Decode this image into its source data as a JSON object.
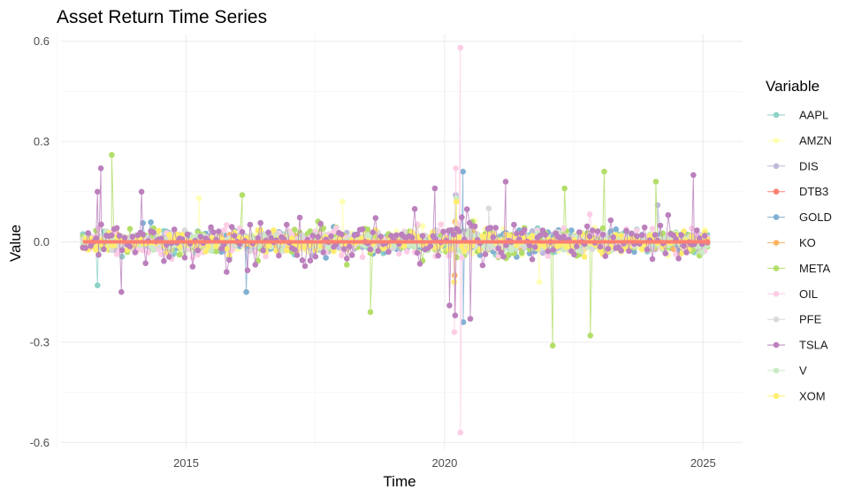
{
  "chart_data": {
    "type": "line",
    "title": "Asset Return Time Series",
    "xlabel": "Time",
    "ylabel": "Value",
    "x_ticks": [
      "2015",
      "2020",
      "2025"
    ],
    "y_ticks": [
      "0.6",
      "0.3",
      "0.0",
      "-0.3",
      "-0.6"
    ],
    "xlim": [
      "2012-07-31",
      "2025-10-07"
    ],
    "ylim": [
      -0.62,
      0.62
    ],
    "grid": true,
    "legend": {
      "title": "Variable",
      "position": "right"
    },
    "markers": true,
    "series": [
      {
        "name": "AAPL",
        "color": "#8DD3C7",
        "extremes": [
          {
            "x": "2013-04-15",
            "y": -0.13
          }
        ]
      },
      {
        "name": "AMZN",
        "color": "#FFFFB3",
        "extremes": [
          {
            "x": "2015-04-01",
            "y": 0.13
          },
          {
            "x": "2018-01-10",
            "y": 0.12
          },
          {
            "x": "2021-11-01",
            "y": -0.12
          }
        ]
      },
      {
        "name": "DIS",
        "color": "#BEBADA",
        "extremes": [
          {
            "x": "2020-03-20",
            "y": 0.14
          },
          {
            "x": "2024-02-15",
            "y": 0.11
          }
        ]
      },
      {
        "name": "DTB3",
        "color": "#FB8072",
        "x": [
          "2013-01-02",
          "2025-01-31"
        ],
        "values": [
          0.0,
          0.0
        ]
      },
      {
        "name": "GOLD",
        "color": "#80B1D3",
        "extremes": [
          {
            "x": "2020-05-10",
            "y": 0.21
          },
          {
            "x": "2020-05-12",
            "y": -0.24
          },
          {
            "x": "2016-03-01",
            "y": -0.15
          }
        ]
      },
      {
        "name": "KO",
        "color": "#FDB462",
        "extremes": [
          {
            "x": "2020-03-16",
            "y": 0.06
          },
          {
            "x": "2020-03-12",
            "y": -0.1
          }
        ]
      },
      {
        "name": "META",
        "color": "#B3DE69",
        "extremes": [
          {
            "x": "2013-07-25",
            "y": 0.26
          },
          {
            "x": "2018-07-26",
            "y": -0.21
          },
          {
            "x": "2022-02-03",
            "y": -0.31
          },
          {
            "x": "2022-10-27",
            "y": -0.28
          },
          {
            "x": "2023-02-02",
            "y": 0.21
          },
          {
            "x": "2024-02-02",
            "y": 0.18
          },
          {
            "x": "2016-02-01",
            "y": 0.14
          },
          {
            "x": "2022-04-28",
            "y": 0.16
          }
        ]
      },
      {
        "name": "OIL",
        "color": "#FCCDE5",
        "extremes": [
          {
            "x": "2020-04-21",
            "y": 0.58
          },
          {
            "x": "2020-04-22",
            "y": -0.57
          },
          {
            "x": "2020-03-10",
            "y": -0.27
          },
          {
            "x": "2020-03-20",
            "y": 0.22
          }
        ]
      },
      {
        "name": "PFE",
        "color": "#D9D9D9",
        "extremes": [
          {
            "x": "2020-11-09",
            "y": 0.1
          }
        ]
      },
      {
        "name": "TSLA",
        "color": "#BC80BD",
        "extremes": [
          {
            "x": "2013-05-09",
            "y": 0.22
          },
          {
            "x": "2013-04-15",
            "y": 0.15
          },
          {
            "x": "2013-10-01",
            "y": -0.15
          },
          {
            "x": "2014-02-20",
            "y": 0.15
          },
          {
            "x": "2020-02-04",
            "y": -0.19
          },
          {
            "x": "2020-03-16",
            "y": -0.22
          },
          {
            "x": "2020-07-01",
            "y": -0.23
          },
          {
            "x": "2021-03-08",
            "y": 0.18
          },
          {
            "x": "2024-10-24",
            "y": 0.2
          },
          {
            "x": "2019-10-24",
            "y": 0.16
          }
        ]
      },
      {
        "name": "V",
        "color": "#CCEBC5",
        "extremes": [
          {
            "x": "2020-03-24",
            "y": 0.13
          }
        ]
      },
      {
        "name": "XOM",
        "color": "#FFED6F",
        "extremes": [
          {
            "x": "2020-03-09",
            "y": -0.12
          },
          {
            "x": "2020-03-24",
            "y": 0.12
          }
        ]
      }
    ]
  }
}
